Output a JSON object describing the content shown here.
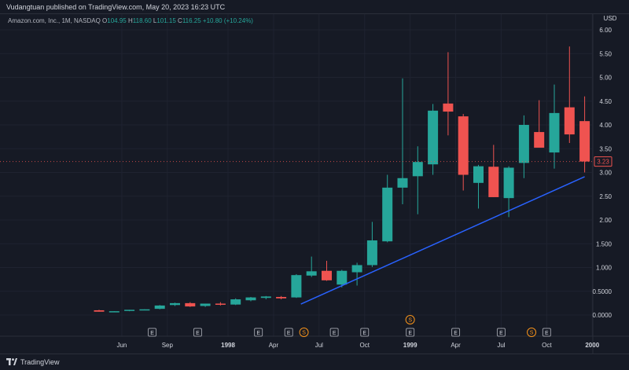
{
  "header": {
    "published": "Vudangtuan published on TradingView.com, May 20, 2023 16:23 UTC"
  },
  "symbol": {
    "name": "Amazon.com, Inc., 1M, NASDAQ",
    "open_label": "O",
    "open": "104.95",
    "high_label": "H",
    "high": "118.60",
    "low_label": "L",
    "low": "101.15",
    "close_label": "C",
    "close": "116.25",
    "change": "+10.80 (+10.24%)"
  },
  "footer": {
    "brand": "TradingView"
  },
  "colors": {
    "background": "#161a25",
    "up": "#26a69a",
    "down": "#ef5350",
    "trendline": "#2962ff",
    "grid": "#1f2330",
    "price_badge": "#ef5350",
    "marker_s": "#f7931a"
  },
  "chart_data": {
    "type": "candlestick",
    "currency": "USD",
    "ylim": [
      0,
      6.0
    ],
    "y_ticks": [
      "6.00",
      "5.50",
      "5.00",
      "4.50",
      "4.00",
      "3.50",
      "3.00",
      "2.50",
      "2.00",
      "1.500",
      "1.000",
      "0.5000",
      "0.0000"
    ],
    "y_tick_values": [
      6.0,
      5.5,
      5.0,
      4.5,
      4.0,
      3.5,
      3.0,
      2.5,
      2.0,
      1.5,
      1.0,
      0.5,
      0.0
    ],
    "x_ticks": [
      {
        "label": "Jun",
        "index": 1.5,
        "bold": false
      },
      {
        "label": "Sep",
        "index": 4.5,
        "bold": false
      },
      {
        "label": "1998",
        "index": 8.5,
        "bold": true
      },
      {
        "label": "Apr",
        "index": 11.5,
        "bold": false
      },
      {
        "label": "Jul",
        "index": 14.5,
        "bold": false
      },
      {
        "label": "Oct",
        "index": 17.5,
        "bold": false
      },
      {
        "label": "1999",
        "index": 20.5,
        "bold": true
      },
      {
        "label": "Apr",
        "index": 23.5,
        "bold": false
      },
      {
        "label": "Jul",
        "index": 26.5,
        "bold": false
      },
      {
        "label": "Oct",
        "index": 29.5,
        "bold": false
      },
      {
        "label": "2000",
        "index": 32.5,
        "bold": true
      }
    ],
    "candles": [
      {
        "o": 0.1,
        "h": 0.11,
        "l": 0.07,
        "c": 0.07
      },
      {
        "o": 0.07,
        "h": 0.08,
        "l": 0.06,
        "c": 0.08
      },
      {
        "o": 0.09,
        "h": 0.11,
        "l": 0.08,
        "c": 0.11
      },
      {
        "o": 0.11,
        "h": 0.12,
        "l": 0.1,
        "c": 0.12
      },
      {
        "o": 0.13,
        "h": 0.21,
        "l": 0.12,
        "c": 0.2
      },
      {
        "o": 0.21,
        "h": 0.26,
        "l": 0.19,
        "c": 0.25
      },
      {
        "o": 0.25,
        "h": 0.27,
        "l": 0.17,
        "c": 0.18
      },
      {
        "o": 0.19,
        "h": 0.24,
        "l": 0.17,
        "c": 0.24
      },
      {
        "o": 0.24,
        "h": 0.27,
        "l": 0.2,
        "c": 0.22
      },
      {
        "o": 0.22,
        "h": 0.35,
        "l": 0.21,
        "c": 0.33
      },
      {
        "o": 0.31,
        "h": 0.38,
        "l": 0.29,
        "c": 0.37
      },
      {
        "o": 0.36,
        "h": 0.4,
        "l": 0.33,
        "c": 0.39
      },
      {
        "o": 0.38,
        "h": 0.4,
        "l": 0.33,
        "c": 0.35
      },
      {
        "o": 0.37,
        "h": 0.86,
        "l": 0.36,
        "c": 0.84
      },
      {
        "o": 0.83,
        "h": 1.23,
        "l": 0.8,
        "c": 0.92
      },
      {
        "o": 0.93,
        "h": 1.14,
        "l": 0.72,
        "c": 0.73
      },
      {
        "o": 0.64,
        "h": 0.95,
        "l": 0.58,
        "c": 0.93
      },
      {
        "o": 0.9,
        "h": 1.1,
        "l": 0.62,
        "c": 1.05
      },
      {
        "o": 1.05,
        "h": 1.96,
        "l": 1.01,
        "c": 1.57
      },
      {
        "o": 1.55,
        "h": 2.95,
        "l": 1.53,
        "c": 2.68
      },
      {
        "o": 2.68,
        "h": 4.98,
        "l": 2.33,
        "c": 2.88
      },
      {
        "o": 2.92,
        "h": 3.55,
        "l": 2.12,
        "c": 3.22
      },
      {
        "o": 3.17,
        "h": 4.44,
        "l": 2.95,
        "c": 4.3
      },
      {
        "o": 4.45,
        "h": 5.53,
        "l": 3.78,
        "c": 4.28
      },
      {
        "o": 4.18,
        "h": 4.23,
        "l": 2.62,
        "c": 2.95
      },
      {
        "o": 2.78,
        "h": 3.16,
        "l": 2.24,
        "c": 3.13
      },
      {
        "o": 3.12,
        "h": 3.58,
        "l": 2.48,
        "c": 2.48
      },
      {
        "o": 2.46,
        "h": 3.13,
        "l": 2.06,
        "c": 3.1
      },
      {
        "o": 3.2,
        "h": 4.2,
        "l": 2.88,
        "c": 4.0
      },
      {
        "o": 3.85,
        "h": 4.52,
        "l": 3.55,
        "c": 3.52
      },
      {
        "o": 3.42,
        "h": 4.85,
        "l": 3.08,
        "c": 4.25
      },
      {
        "o": 4.37,
        "h": 5.65,
        "l": 3.62,
        "c": 3.8
      },
      {
        "o": 4.08,
        "h": 4.6,
        "l": 3.0,
        "c": 3.23
      }
    ],
    "trendline": {
      "start": {
        "index": 13.3,
        "price": 0.23
      },
      "end": {
        "index": 32.0,
        "price": 2.91
      }
    },
    "last_price": "3.23",
    "last_price_value": 3.23,
    "event_markers": [
      {
        "type": "E",
        "index": 3.5
      },
      {
        "type": "E",
        "index": 6.5
      },
      {
        "type": "E",
        "index": 10.5
      },
      {
        "type": "E",
        "index": 12.5
      },
      {
        "type": "S",
        "index": 13.5
      },
      {
        "type": "E",
        "index": 15.5
      },
      {
        "type": "E",
        "index": 17.5
      },
      {
        "type": "E",
        "index": 20.5
      },
      {
        "type": "S",
        "index": 20.5
      },
      {
        "type": "E",
        "index": 23.5
      },
      {
        "type": "E",
        "index": 26.5
      },
      {
        "type": "S",
        "index": 28.5
      },
      {
        "type": "E",
        "index": 29.5
      }
    ]
  }
}
